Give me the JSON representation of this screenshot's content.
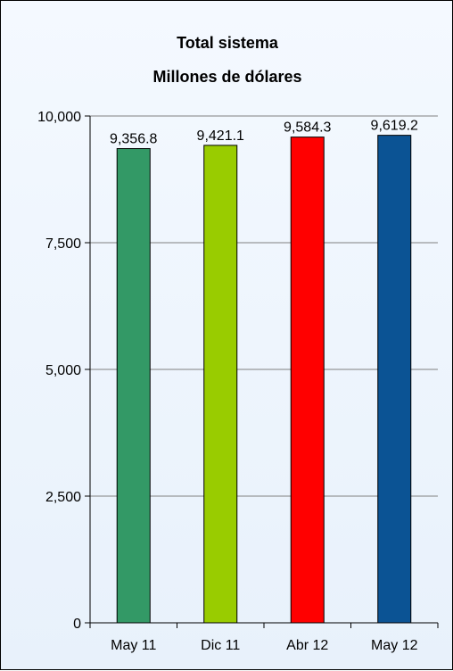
{
  "chart_data": {
    "type": "bar",
    "title": "Total sistema",
    "subtitle": "Millones de dólares",
    "categories": [
      "May 11",
      "Dic 11",
      "Abr 12",
      "May 12"
    ],
    "values": [
      9356.8,
      9421.1,
      9584.3,
      9619.2
    ],
    "data_labels": [
      "9,356.8",
      "9,421.1",
      "9,584.3",
      "9,619.2"
    ],
    "bar_colors": [
      "#339966",
      "#99cc00",
      "#ff0000",
      "#0b5394"
    ],
    "ylim": [
      0,
      10000
    ],
    "yticks": [
      0,
      2500,
      5000,
      7500,
      10000
    ],
    "ytick_labels": [
      "0",
      "2,500",
      "5,000",
      "7,500",
      "10,000"
    ],
    "grid": true,
    "legend": "none",
    "xlabel": "",
    "ylabel": ""
  }
}
